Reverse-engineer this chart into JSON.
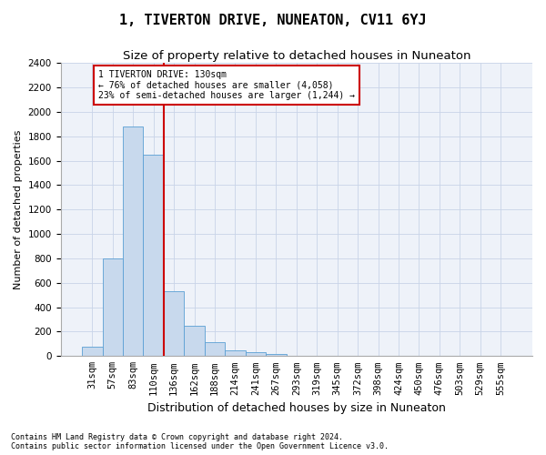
{
  "title": "1, TIVERTON DRIVE, NUNEATON, CV11 6YJ",
  "subtitle": "Size of property relative to detached houses in Nuneaton",
  "xlabel": "Distribution of detached houses by size in Nuneaton",
  "ylabel": "Number of detached properties",
  "footer_line1": "Contains HM Land Registry data © Crown copyright and database right 2024.",
  "footer_line2": "Contains public sector information licensed under the Open Government Licence v3.0.",
  "bar_labels": [
    "31sqm",
    "57sqm",
    "83sqm",
    "110sqm",
    "136sqm",
    "162sqm",
    "188sqm",
    "214sqm",
    "241sqm",
    "267sqm",
    "293sqm",
    "319sqm",
    "345sqm",
    "372sqm",
    "398sqm",
    "424sqm",
    "450sqm",
    "476sqm",
    "503sqm",
    "529sqm",
    "555sqm"
  ],
  "bar_values": [
    75,
    800,
    1880,
    1650,
    530,
    245,
    115,
    50,
    30,
    15,
    5,
    5,
    2,
    1,
    1,
    0,
    0,
    0,
    0,
    0,
    0
  ],
  "bar_color": "#c8d9ed",
  "bar_edge_color": "#5a9fd4",
  "vline_index": 4,
  "vline_color": "#cc0000",
  "annotation_title": "1 TIVERTON DRIVE: 130sqm",
  "annotation_line1": "← 76% of detached houses are smaller (4,058)",
  "annotation_line2": "23% of semi-detached houses are larger (1,244) →",
  "annotation_box_color": "#cc0000",
  "ylim": [
    0,
    2400
  ],
  "yticks": [
    0,
    200,
    400,
    600,
    800,
    1000,
    1200,
    1400,
    1600,
    1800,
    2000,
    2200,
    2400
  ],
  "grid_color": "#c8d4e8",
  "bg_color": "#eef2f9",
  "title_fontsize": 11,
  "subtitle_fontsize": 9.5,
  "xlabel_fontsize": 9,
  "ylabel_fontsize": 8,
  "tick_fontsize": 7.5,
  "annotation_fontsize": 7,
  "footer_fontsize": 6
}
